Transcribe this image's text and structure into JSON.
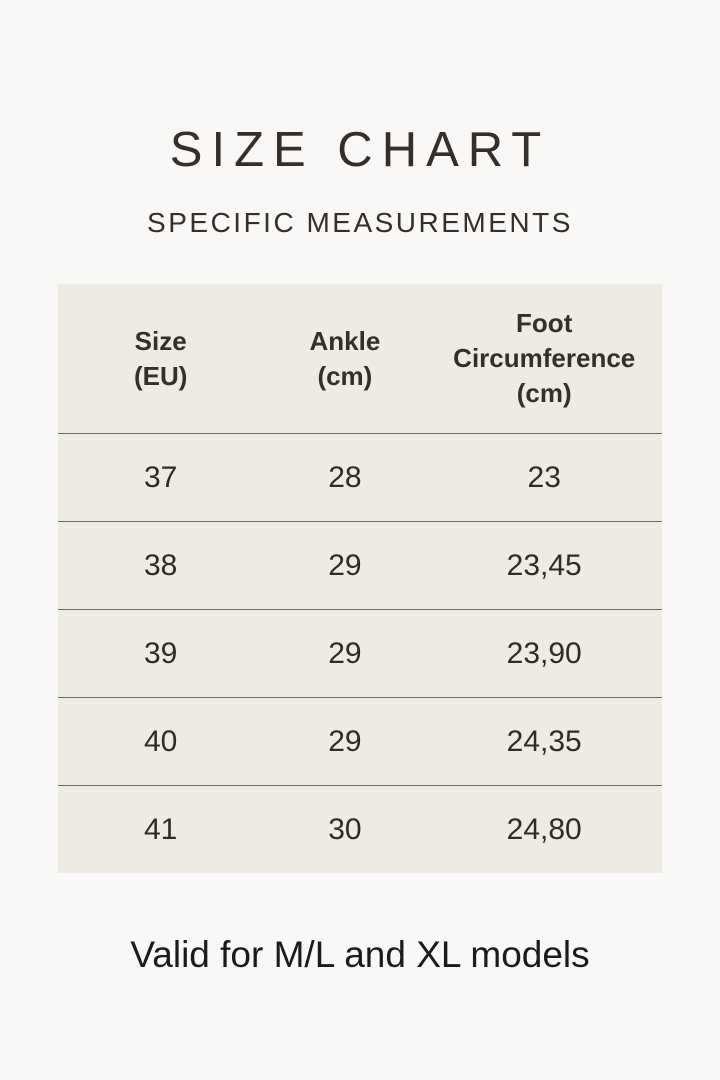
{
  "header": {
    "title": "SIZE CHART",
    "subtitle": "SPECIFIC MEASUREMENTS"
  },
  "table": {
    "columns": [
      {
        "label": "Size",
        "unit": "(EU)"
      },
      {
        "label": "Ankle",
        "unit": "(cm)"
      },
      {
        "label": "Foot Circumference",
        "unit": "(cm)"
      }
    ],
    "rows": [
      [
        "37",
        "28",
        "23"
      ],
      [
        "38",
        "29",
        "23,45"
      ],
      [
        "39",
        "29",
        "23,90"
      ],
      [
        "40",
        "29",
        "24,35"
      ],
      [
        "41",
        "30",
        "24,80"
      ]
    ]
  },
  "footer": {
    "note": "Valid for M/L and XL models"
  },
  "colors": {
    "page_bg": "#f9f8f6",
    "table_bg": "#edebe4",
    "text_dark": "#362e28",
    "divider": "#6e6a63",
    "footer_text": "#1d1b19"
  },
  "chart_data": {
    "type": "table",
    "title": "SIZE CHART",
    "subtitle": "SPECIFIC MEASUREMENTS",
    "columns": [
      "Size (EU)",
      "Ankle (cm)",
      "Foot Circumference (cm)"
    ],
    "rows": [
      [
        "37",
        "28",
        "23"
      ],
      [
        "38",
        "29",
        "23,45"
      ],
      [
        "39",
        "29",
        "23,90"
      ],
      [
        "40",
        "29",
        "24,35"
      ],
      [
        "41",
        "30",
        "24,80"
      ]
    ],
    "note": "Valid for M/L and XL models"
  }
}
